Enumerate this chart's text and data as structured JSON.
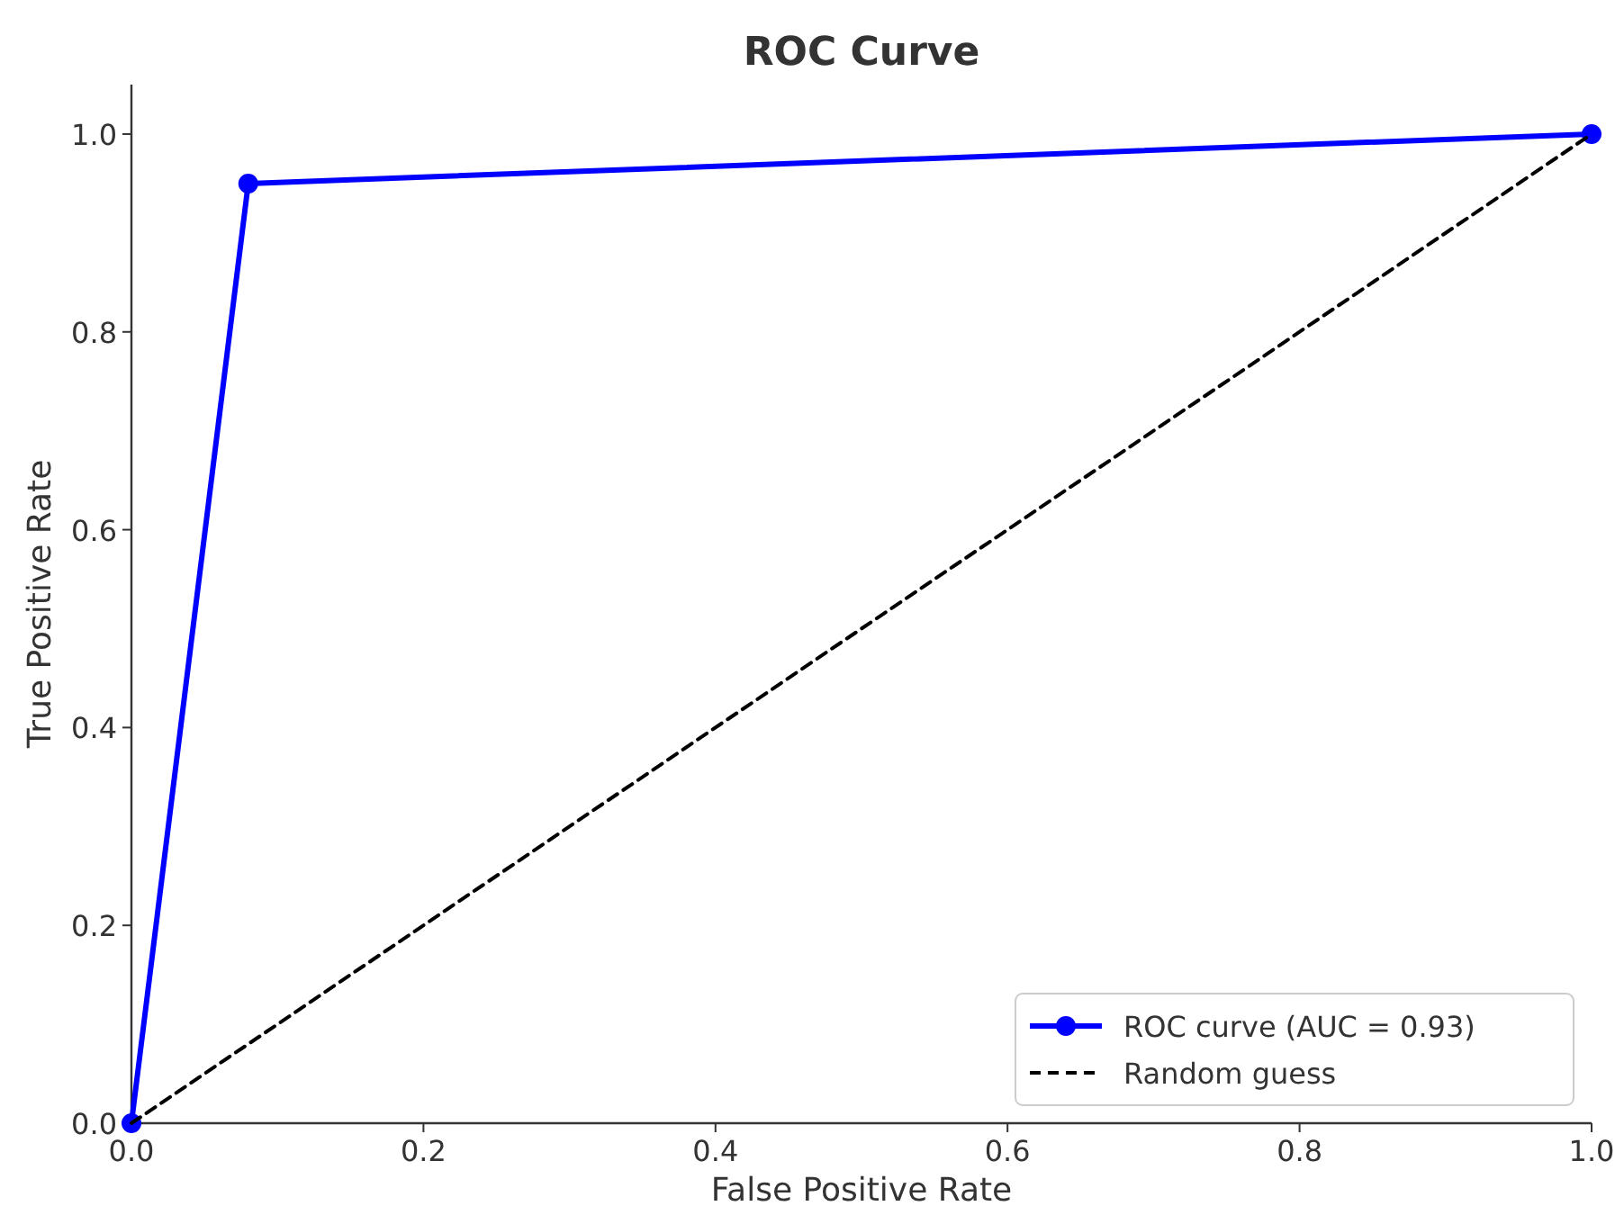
{
  "chart_data": {
    "type": "line",
    "title": "ROC Curve",
    "xlabel": "False Positive Rate",
    "ylabel": "True Positive Rate",
    "xlim": [
      0,
      1
    ],
    "ylim": [
      0,
      1.05
    ],
    "xticks": [
      {
        "value": 0,
        "label": "0.0"
      },
      0.2,
      0.4,
      0.6,
      0.8,
      {
        "value": 1,
        "label": "1.0"
      }
    ],
    "yticks": [
      {
        "value": 0,
        "label": "0.0"
      },
      0.2,
      0.4,
      0.6,
      0.8,
      {
        "value": 1,
        "label": "1.0"
      }
    ],
    "grid": false,
    "legend": "bottom right",
    "series": [
      {
        "name": "ROC curve (AUC = 0.93)",
        "color": "#0000ff",
        "x": [
          0,
          0.08,
          1
        ],
        "values": [
          0,
          0.95,
          1
        ],
        "marker": "circle",
        "line_style": "solid"
      },
      {
        "name": "Random guess",
        "color": "#000000",
        "x": [
          0,
          1
        ],
        "values": [
          0,
          1
        ],
        "marker": "none",
        "line_style": "dashed"
      }
    ]
  }
}
